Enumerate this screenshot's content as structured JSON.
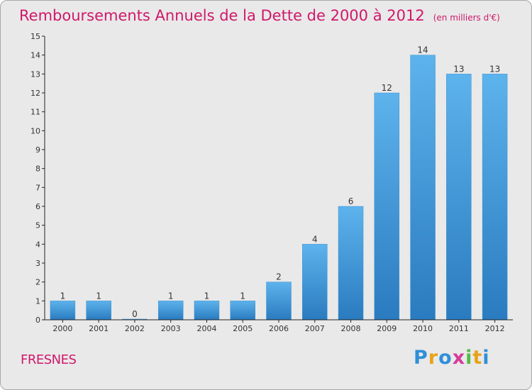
{
  "title": "Remboursements Annuels de la Dette de 2000 à 2012",
  "unit": "(en milliers d'€)",
  "place": "FRESNES",
  "logo": {
    "letters": [
      "P",
      "r",
      "o",
      "x",
      "i",
      "t",
      "i"
    ],
    "colors": [
      "#2f8fd8",
      "#e8a317",
      "#2f8fd8",
      "#d63b9b",
      "#57b947",
      "#e8a317",
      "#2f8fd8"
    ]
  },
  "colors": {
    "accent": "#d0186a",
    "bar_light": "#5db3ec",
    "bar_dark": "#2a7bbf",
    "background": "#e9e9e9"
  },
  "chart_data": {
    "type": "bar",
    "categories": [
      "2000",
      "2001",
      "2002",
      "2003",
      "2004",
      "2005",
      "2006",
      "2007",
      "2008",
      "2009",
      "2010",
      "2011",
      "2012"
    ],
    "values": [
      1,
      1,
      0,
      1,
      1,
      1,
      2,
      4,
      6,
      12,
      14,
      13,
      13
    ],
    "data_labels": [
      "1",
      "1",
      "0",
      "1",
      "1",
      "1",
      "2",
      "4",
      "6",
      "12",
      "14",
      "13",
      "13"
    ],
    "y_ticks": [
      "0",
      "1",
      "2",
      "3",
      "4",
      "5",
      "6",
      "7",
      "8",
      "9",
      "10",
      "11",
      "12",
      "13",
      "14",
      "15"
    ],
    "ylim": [
      0,
      15
    ],
    "grid": false
  }
}
